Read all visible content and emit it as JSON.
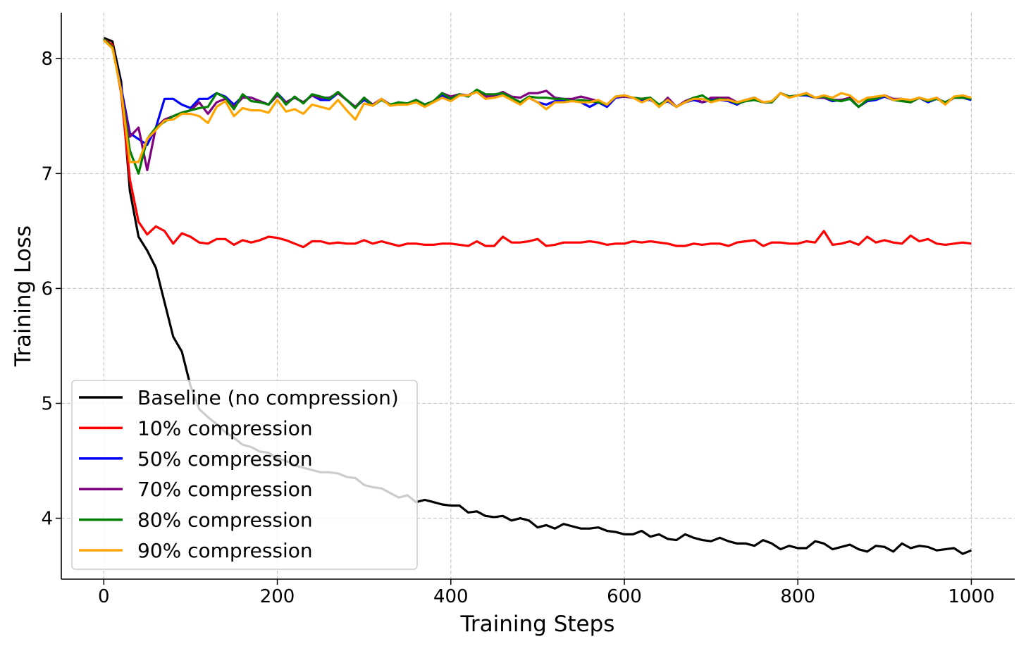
{
  "chart_data": {
    "type": "line",
    "title": "",
    "xlabel": "Training Steps",
    "ylabel": "Training Loss",
    "xlim": [
      -49,
      1050
    ],
    "ylim": [
      3.47,
      8.4
    ],
    "xticks": [
      0,
      200,
      400,
      600,
      800,
      1000
    ],
    "yticks": [
      4,
      5,
      6,
      7,
      8
    ],
    "grid": true,
    "legend_position": "bottom-left",
    "x": [
      0,
      10,
      20,
      30,
      40,
      50,
      60,
      70,
      80,
      90,
      100,
      110,
      120,
      130,
      140,
      150,
      160,
      170,
      180,
      190,
      200,
      210,
      220,
      230,
      240,
      250,
      260,
      270,
      280,
      290,
      300,
      310,
      320,
      330,
      340,
      350,
      360,
      370,
      380,
      390,
      400,
      410,
      420,
      430,
      440,
      450,
      460,
      470,
      480,
      490,
      500,
      510,
      520,
      530,
      540,
      550,
      560,
      570,
      580,
      590,
      600,
      610,
      620,
      630,
      640,
      650,
      660,
      670,
      680,
      690,
      700,
      710,
      720,
      730,
      740,
      750,
      760,
      770,
      780,
      790,
      800,
      810,
      820,
      830,
      840,
      850,
      860,
      870,
      880,
      890,
      900,
      910,
      920,
      930,
      940,
      950,
      960,
      970,
      980,
      990,
      1000
    ],
    "series": [
      {
        "name": "Baseline (no compression)",
        "color": "#000000",
        "values": [
          8.18,
          8.15,
          7.8,
          6.85,
          6.45,
          6.33,
          6.18,
          5.88,
          5.58,
          5.45,
          5.15,
          4.95,
          4.88,
          4.82,
          4.75,
          4.7,
          4.64,
          4.62,
          4.58,
          4.57,
          4.52,
          4.5,
          4.46,
          4.44,
          4.42,
          4.4,
          4.4,
          4.39,
          4.36,
          4.35,
          4.29,
          4.27,
          4.26,
          4.22,
          4.18,
          4.2,
          4.14,
          4.16,
          4.14,
          4.12,
          4.11,
          4.11,
          4.05,
          4.06,
          4.02,
          4.01,
          4.02,
          3.98,
          4.0,
          3.98,
          3.92,
          3.94,
          3.91,
          3.95,
          3.93,
          3.91,
          3.91,
          3.92,
          3.89,
          3.88,
          3.86,
          3.86,
          3.89,
          3.84,
          3.86,
          3.82,
          3.81,
          3.86,
          3.83,
          3.81,
          3.8,
          3.83,
          3.8,
          3.78,
          3.78,
          3.76,
          3.81,
          3.78,
          3.73,
          3.76,
          3.74,
          3.74,
          3.8,
          3.78,
          3.73,
          3.75,
          3.77,
          3.73,
          3.71,
          3.76,
          3.75,
          3.71,
          3.78,
          3.74,
          3.76,
          3.75,
          3.72,
          3.73,
          3.74,
          3.69,
          3.72
        ]
      },
      {
        "name": "10% compression",
        "color": "#ff0000",
        "values": [
          8.17,
          8.12,
          7.7,
          6.95,
          6.58,
          6.47,
          6.54,
          6.5,
          6.39,
          6.48,
          6.45,
          6.4,
          6.39,
          6.43,
          6.43,
          6.38,
          6.42,
          6.4,
          6.42,
          6.45,
          6.44,
          6.42,
          6.39,
          6.36,
          6.41,
          6.41,
          6.39,
          6.4,
          6.39,
          6.39,
          6.42,
          6.39,
          6.41,
          6.39,
          6.37,
          6.39,
          6.39,
          6.38,
          6.38,
          6.39,
          6.39,
          6.38,
          6.37,
          6.41,
          6.37,
          6.37,
          6.45,
          6.4,
          6.4,
          6.41,
          6.43,
          6.37,
          6.38,
          6.4,
          6.4,
          6.4,
          6.41,
          6.4,
          6.38,
          6.39,
          6.39,
          6.41,
          6.4,
          6.41,
          6.4,
          6.39,
          6.37,
          6.37,
          6.39,
          6.38,
          6.39,
          6.39,
          6.37,
          6.4,
          6.41,
          6.42,
          6.37,
          6.4,
          6.4,
          6.39,
          6.39,
          6.41,
          6.4,
          6.5,
          6.38,
          6.39,
          6.41,
          6.38,
          6.45,
          6.4,
          6.42,
          6.4,
          6.39,
          6.46,
          6.41,
          6.43,
          6.39,
          6.38,
          6.39,
          6.4,
          6.39
        ]
      },
      {
        "name": "50% compression",
        "color": "#0000ff",
        "values": [
          8.17,
          8.1,
          7.75,
          7.35,
          7.3,
          7.25,
          7.4,
          7.65,
          7.65,
          7.6,
          7.57,
          7.65,
          7.65,
          7.7,
          7.67,
          7.6,
          7.67,
          7.66,
          7.63,
          7.6,
          7.7,
          7.62,
          7.66,
          7.62,
          7.68,
          7.64,
          7.64,
          7.7,
          7.64,
          7.58,
          7.64,
          7.6,
          7.64,
          7.6,
          7.61,
          7.61,
          7.64,
          7.6,
          7.63,
          7.68,
          7.64,
          7.68,
          7.68,
          7.72,
          7.66,
          7.68,
          7.7,
          7.66,
          7.62,
          7.66,
          7.62,
          7.6,
          7.63,
          7.64,
          7.64,
          7.62,
          7.58,
          7.62,
          7.58,
          7.66,
          7.67,
          7.66,
          7.64,
          7.64,
          7.6,
          7.63,
          7.58,
          7.62,
          7.64,
          7.62,
          7.64,
          7.64,
          7.63,
          7.6,
          7.64,
          7.66,
          7.62,
          7.62,
          7.7,
          7.67,
          7.68,
          7.68,
          7.66,
          7.66,
          7.63,
          7.64,
          7.65,
          7.58,
          7.63,
          7.64,
          7.67,
          7.64,
          7.64,
          7.62,
          7.66,
          7.62,
          7.65,
          7.62,
          7.66,
          7.66,
          7.64
        ]
      },
      {
        "name": "70% compression",
        "color": "#800080",
        "values": [
          8.17,
          8.1,
          7.72,
          7.32,
          7.4,
          7.03,
          7.4,
          7.47,
          7.5,
          7.53,
          7.55,
          7.62,
          7.52,
          7.62,
          7.65,
          7.58,
          7.66,
          7.66,
          7.63,
          7.6,
          7.68,
          7.62,
          7.66,
          7.62,
          7.68,
          7.66,
          7.66,
          7.7,
          7.64,
          7.58,
          7.66,
          7.6,
          7.65,
          7.6,
          7.61,
          7.6,
          7.64,
          7.6,
          7.63,
          7.7,
          7.67,
          7.69,
          7.68,
          7.72,
          7.67,
          7.68,
          7.71,
          7.67,
          7.66,
          7.7,
          7.7,
          7.72,
          7.66,
          7.65,
          7.65,
          7.67,
          7.65,
          7.63,
          7.6,
          7.67,
          7.67,
          7.66,
          7.65,
          7.66,
          7.58,
          7.66,
          7.58,
          7.63,
          7.66,
          7.62,
          7.66,
          7.66,
          7.66,
          7.62,
          7.64,
          7.66,
          7.62,
          7.62,
          7.7,
          7.67,
          7.68,
          7.7,
          7.66,
          7.66,
          7.64,
          7.64,
          7.66,
          7.58,
          7.64,
          7.66,
          7.68,
          7.65,
          7.65,
          7.62,
          7.66,
          7.63,
          7.66,
          7.61,
          7.66,
          7.66,
          7.66
        ]
      },
      {
        "name": "80% compression",
        "color": "#008000",
        "values": [
          8.17,
          8.1,
          7.72,
          7.2,
          7.0,
          7.3,
          7.4,
          7.45,
          7.5,
          7.53,
          7.55,
          7.57,
          7.58,
          7.7,
          7.66,
          7.56,
          7.69,
          7.63,
          7.62,
          7.6,
          7.7,
          7.6,
          7.67,
          7.61,
          7.69,
          7.67,
          7.65,
          7.71,
          7.64,
          7.57,
          7.66,
          7.59,
          7.64,
          7.6,
          7.62,
          7.61,
          7.64,
          7.6,
          7.63,
          7.7,
          7.65,
          7.69,
          7.67,
          7.73,
          7.69,
          7.69,
          7.7,
          7.66,
          7.62,
          7.67,
          7.66,
          7.66,
          7.65,
          7.65,
          7.63,
          7.64,
          7.63,
          7.62,
          7.6,
          7.67,
          7.68,
          7.66,
          7.65,
          7.66,
          7.6,
          7.64,
          7.58,
          7.62,
          7.66,
          7.68,
          7.63,
          7.65,
          7.64,
          7.61,
          7.63,
          7.64,
          7.62,
          7.62,
          7.7,
          7.67,
          7.68,
          7.69,
          7.66,
          7.67,
          7.64,
          7.63,
          7.65,
          7.58,
          7.64,
          7.65,
          7.68,
          7.64,
          7.63,
          7.62,
          7.66,
          7.63,
          7.65,
          7.62,
          7.66,
          7.66,
          7.65
        ]
      },
      {
        "name": "90% compression",
        "color": "#ffa500",
        "values": [
          8.16,
          8.09,
          7.72,
          7.1,
          7.1,
          7.3,
          7.38,
          7.46,
          7.47,
          7.52,
          7.52,
          7.5,
          7.44,
          7.58,
          7.63,
          7.5,
          7.57,
          7.55,
          7.55,
          7.53,
          7.64,
          7.54,
          7.56,
          7.52,
          7.6,
          7.58,
          7.56,
          7.64,
          7.55,
          7.47,
          7.61,
          7.59,
          7.65,
          7.59,
          7.6,
          7.6,
          7.62,
          7.58,
          7.62,
          7.66,
          7.63,
          7.68,
          7.68,
          7.71,
          7.65,
          7.66,
          7.68,
          7.64,
          7.6,
          7.66,
          7.62,
          7.56,
          7.62,
          7.62,
          7.63,
          7.62,
          7.62,
          7.64,
          7.6,
          7.67,
          7.68,
          7.66,
          7.62,
          7.65,
          7.58,
          7.64,
          7.58,
          7.62,
          7.65,
          7.65,
          7.62,
          7.64,
          7.64,
          7.62,
          7.64,
          7.66,
          7.62,
          7.63,
          7.7,
          7.66,
          7.68,
          7.7,
          7.66,
          7.68,
          7.66,
          7.7,
          7.68,
          7.62,
          7.66,
          7.67,
          7.68,
          7.64,
          7.65,
          7.64,
          7.66,
          7.64,
          7.66,
          7.6,
          7.67,
          7.68,
          7.66
        ]
      }
    ]
  }
}
